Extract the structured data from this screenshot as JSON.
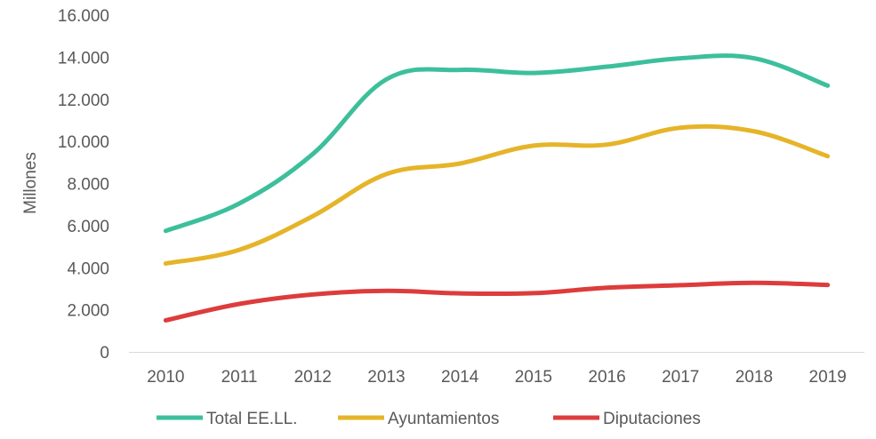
{
  "chart_data": {
    "type": "line",
    "title": "",
    "xlabel": "",
    "ylabel": "Millones",
    "ylim": [
      0,
      16000
    ],
    "y_ticks": [
      0,
      2000,
      4000,
      6000,
      8000,
      10000,
      12000,
      14000,
      16000
    ],
    "y_tick_labels": [
      "0",
      "2.000",
      "4.000",
      "6.000",
      "8.000",
      "10.000",
      "12.000",
      "14.000",
      "16.000"
    ],
    "x": [
      "2010",
      "2011",
      "2012",
      "2013",
      "2014",
      "2015",
      "2016",
      "2017",
      "2018",
      "2019"
    ],
    "grid": false,
    "legend_position": "bottom",
    "series": [
      {
        "name": "Total EE.LL.",
        "color": "#3dbf9c",
        "values": [
          5750,
          7050,
          9400,
          12950,
          13400,
          13250,
          13550,
          13950,
          13950,
          12650
        ]
      },
      {
        "name": "Ayuntamientos",
        "color": "#e6b429",
        "values": [
          4200,
          4850,
          6450,
          8450,
          8950,
          9800,
          9850,
          10650,
          10480,
          9300
        ]
      },
      {
        "name": "Diputaciones",
        "color": "#dd3c3c",
        "values": [
          1500,
          2280,
          2730,
          2900,
          2780,
          2790,
          3050,
          3170,
          3280,
          3180
        ]
      }
    ]
  }
}
